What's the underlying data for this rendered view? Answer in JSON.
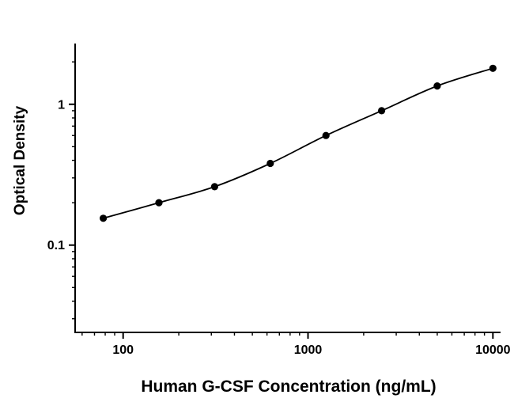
{
  "chart_data": {
    "type": "scatter",
    "title": "",
    "xlabel": "Human G-CSF Concentration (ng/mL)",
    "ylabel": "Optical Density",
    "x_scale": "log",
    "y_scale": "log",
    "x": [
      78.125,
      156.25,
      312.5,
      625,
      1250,
      2500,
      5000,
      10000
    ],
    "y": [
      0.155,
      0.2,
      0.26,
      0.38,
      0.6,
      0.9,
      1.35,
      1.8
    ],
    "xlim": [
      55,
      11000
    ],
    "ylim": [
      0.024,
      2.7
    ],
    "x_major_ticks": [
      100,
      1000,
      10000
    ],
    "x_tick_labels": [
      "100",
      "1000",
      "10000"
    ],
    "y_major_ticks": [
      0.1,
      1
    ],
    "y_tick_labels": [
      "0.1",
      "1"
    ],
    "grid": false,
    "legend": false,
    "line_style": "smooth",
    "marker": "filled-circle",
    "line_color": "#000000",
    "marker_color": "#000000",
    "axis_color": "#000000",
    "background": "#ffffff"
  }
}
